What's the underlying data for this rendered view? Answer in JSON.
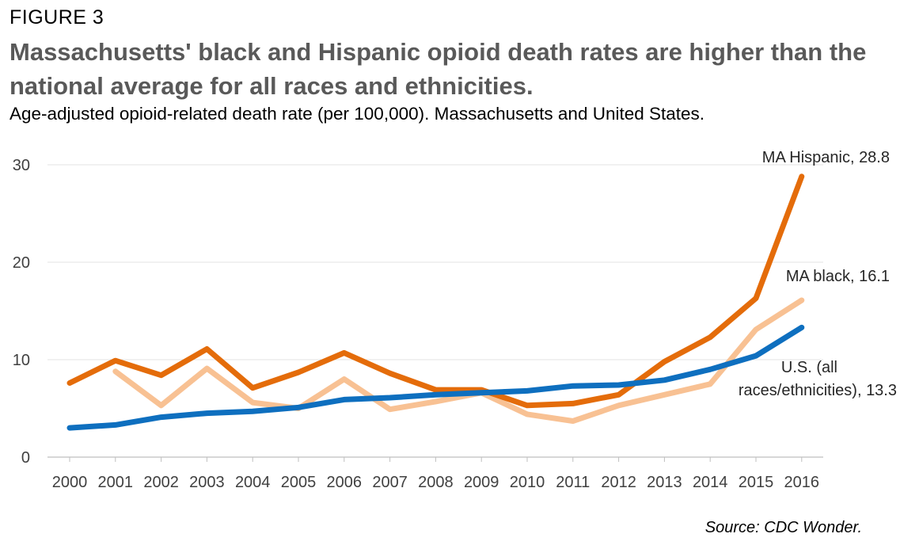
{
  "figure_label": "FIGURE 3",
  "title": "Massachusetts' black and Hispanic opioid death rates are higher than the national average for all races and ethnicities.",
  "subtitle": "Age-adjusted opioid-related death rate (per 100,000). Massachusetts and United States.",
  "source": "Source: CDC Wonder.",
  "chart_data": {
    "type": "line",
    "categories": [
      "2000",
      "2001",
      "2002",
      "2003",
      "2004",
      "2005",
      "2006",
      "2007",
      "2008",
      "2009",
      "2010",
      "2011",
      "2012",
      "2013",
      "2014",
      "2015",
      "2016"
    ],
    "ylim": [
      0,
      30
    ],
    "yticks": [
      "0",
      "10",
      "20",
      "30"
    ],
    "grid": true,
    "series": [
      {
        "name": "MA black",
        "color": "#F8C193",
        "values": [
          null,
          8.8,
          5.3,
          9.1,
          5.6,
          5.0,
          8.0,
          4.9,
          5.7,
          6.6,
          4.4,
          3.7,
          5.3,
          6.4,
          7.5,
          13.1,
          16.1
        ]
      },
      {
        "name": "MA Hispanic",
        "color": "#E46C0A",
        "values": [
          7.6,
          9.9,
          8.4,
          11.1,
          7.1,
          8.7,
          10.7,
          8.6,
          6.9,
          6.9,
          5.3,
          5.5,
          6.4,
          9.8,
          12.3,
          16.3,
          28.8
        ]
      },
      {
        "name": "U.S. (all races/ethnicities)",
        "color": "#0E6FBF",
        "values": [
          3.0,
          3.3,
          4.1,
          4.5,
          4.7,
          5.1,
          5.9,
          6.1,
          6.4,
          6.6,
          6.8,
          7.3,
          7.4,
          7.9,
          9.0,
          10.4,
          13.3
        ]
      }
    ],
    "annotations": [
      {
        "name": "ma-hispanic-label",
        "lines": [
          "MA Hispanic, 28.8"
        ]
      },
      {
        "name": "ma-black-label",
        "lines": [
          "MA black, 16.1"
        ]
      },
      {
        "name": "us-label",
        "lines": [
          "U.S. (all",
          "races/ethnicities), 13.3"
        ]
      }
    ]
  }
}
